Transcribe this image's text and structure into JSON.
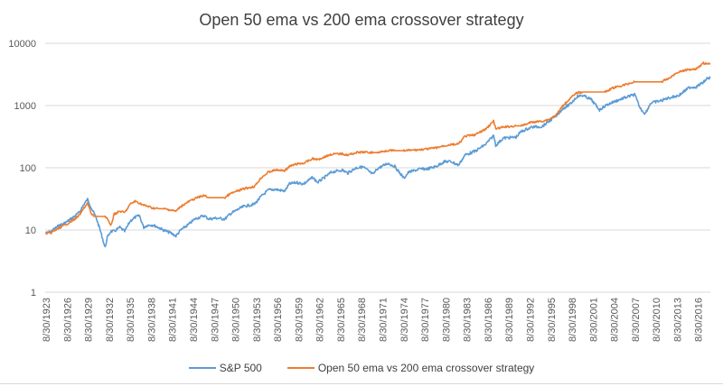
{
  "chart_data": {
    "type": "line",
    "title": "Open 50 ema vs 200 ema crossover strategy",
    "xlabel": "",
    "ylabel": "",
    "yscale": "log",
    "ylim": [
      1,
      10000
    ],
    "y_ticks": [
      "1",
      "10",
      "100",
      "1000",
      "10000"
    ],
    "y_tick_values": [
      1,
      10,
      100,
      1000,
      10000
    ],
    "grid": true,
    "legend_position": "bottom",
    "x_ticks": [
      "8/30/1923",
      "8/30/1926",
      "8/30/1929",
      "8/30/1932",
      "8/30/1935",
      "8/30/1938",
      "8/30/1941",
      "8/30/1944",
      "8/30/1947",
      "8/30/1950",
      "8/30/1953",
      "8/30/1956",
      "8/30/1959",
      "8/30/1962",
      "8/30/1965",
      "8/30/1968",
      "8/30/1971",
      "8/30/1974",
      "8/30/1977",
      "8/30/1980",
      "8/30/1983",
      "8/30/1986",
      "8/30/1989",
      "8/30/1992",
      "8/30/1995",
      "8/30/1998",
      "8/30/2001",
      "8/30/2004",
      "8/30/2007",
      "8/30/2010",
      "8/30/2013",
      "8/30/2016"
    ],
    "x_tick_years": [
      1923.66,
      1926.66,
      1929.66,
      1932.66,
      1935.66,
      1938.66,
      1941.66,
      1944.66,
      1947.66,
      1950.66,
      1953.66,
      1956.66,
      1959.66,
      1962.66,
      1965.66,
      1968.66,
      1971.66,
      1974.66,
      1977.66,
      1980.66,
      1983.66,
      1986.66,
      1989.66,
      1992.66,
      1995.66,
      1998.66,
      2001.66,
      2004.66,
      2007.66,
      2010.66,
      2013.66,
      2016.66
    ],
    "xlim": [
      1923.66,
      2018.5
    ],
    "x": [
      1923.7,
      1924.5,
      1925.5,
      1926.5,
      1927.5,
      1928.5,
      1929.2,
      1929.7,
      1930.3,
      1930.9,
      1931.5,
      1932.2,
      1932.5,
      1933.0,
      1933.5,
      1934.3,
      1935.0,
      1935.8,
      1936.5,
      1937.1,
      1937.7,
      1938.3,
      1939.0,
      1939.8,
      1940.5,
      1941.5,
      1942.3,
      1943.0,
      1944.0,
      1945.0,
      1946.3,
      1947.0,
      1948.0,
      1949.3,
      1950.0,
      1951.0,
      1952.0,
      1953.5,
      1954.5,
      1955.5,
      1956.5,
      1957.8,
      1958.5,
      1959.5,
      1960.5,
      1961.8,
      1962.5,
      1963.5,
      1964.5,
      1966.0,
      1966.8,
      1968.0,
      1969.0,
      1970.4,
      1971.0,
      1972.5,
      1973.5,
      1974.8,
      1975.5,
      1977.0,
      1978.2,
      1979.5,
      1980.5,
      1981.5,
      1982.6,
      1983.5,
      1985.0,
      1986.5,
      1987.6,
      1987.9,
      1989.0,
      1990.8,
      1991.5,
      1993.0,
      1994.5,
      1995.5,
      1996.5,
      1997.5,
      1998.5,
      1999.5,
      2000.3,
      2001.5,
      2002.7,
      2003.5,
      2004.5,
      2006.0,
      2007.7,
      2008.5,
      2009.2,
      2010.0,
      2011.5,
      2012.5,
      2014.0,
      2015.5,
      2016.5,
      2017.5,
      2018.0,
      2018.5
    ],
    "series": [
      {
        "name": "S&P 500",
        "color": "#5B9BD5",
        "values": [
          8.8,
          9.5,
          11.5,
          13,
          15.5,
          19,
          26,
          31,
          22,
          16,
          10,
          5.2,
          7.5,
          9.5,
          9.5,
          11,
          9.5,
          14,
          16,
          17,
          11,
          12,
          12,
          11,
          10,
          9,
          8,
          10,
          12,
          15,
          17,
          15,
          15.5,
          15,
          18,
          21,
          24,
          26,
          35,
          44,
          45,
          42,
          55,
          58,
          55,
          70,
          58,
          70,
          85,
          92,
          82,
          100,
          103,
          78,
          96,
          118,
          105,
          68,
          85,
          95,
          96,
          106,
          125,
          126,
          110,
          160,
          185,
          240,
          330,
          230,
          300,
          310,
          380,
          450,
          460,
          560,
          680,
          900,
          1050,
          1400,
          1450,
          1250,
          850,
          990,
          1120,
          1300,
          1500,
          900,
          740,
          1100,
          1200,
          1320,
          1450,
          1950,
          2000,
          2350,
          2700,
          2800
        ]
      },
      {
        "name": "Open 50 ema vs 200 ema crossover strategy",
        "color": "#ED7D31",
        "values": [
          8.8,
          9,
          10.5,
          12,
          14,
          17,
          22.5,
          27,
          17.5,
          16.5,
          16.5,
          16.5,
          15.5,
          11.5,
          18,
          20,
          19,
          26,
          29,
          27,
          25,
          24,
          22.5,
          22,
          22,
          21,
          20,
          24,
          28,
          32,
          36,
          33,
          33,
          33,
          38,
          42,
          46,
          50,
          70,
          85,
          92,
          90,
          105,
          115,
          118,
          140,
          135,
          150,
          165,
          168,
          160,
          175,
          178,
          175,
          175,
          190,
          188,
          188,
          190,
          195,
          200,
          210,
          225,
          235,
          240,
          320,
          340,
          420,
          560,
          420,
          450,
          470,
          470,
          540,
          560,
          600,
          700,
          1000,
          1300,
          1600,
          1650,
          1650,
          1650,
          1650,
          1900,
          2100,
          2400,
          2400,
          2400,
          2400,
          2400,
          2700,
          3500,
          3800,
          3900,
          4800,
          4700,
          4600
        ]
      }
    ]
  },
  "legend": {
    "items": [
      {
        "label": "S&P 500",
        "color": "#5B9BD5"
      },
      {
        "label": "Open 50 ema vs 200 ema crossover strategy",
        "color": "#ED7D31"
      }
    ]
  }
}
